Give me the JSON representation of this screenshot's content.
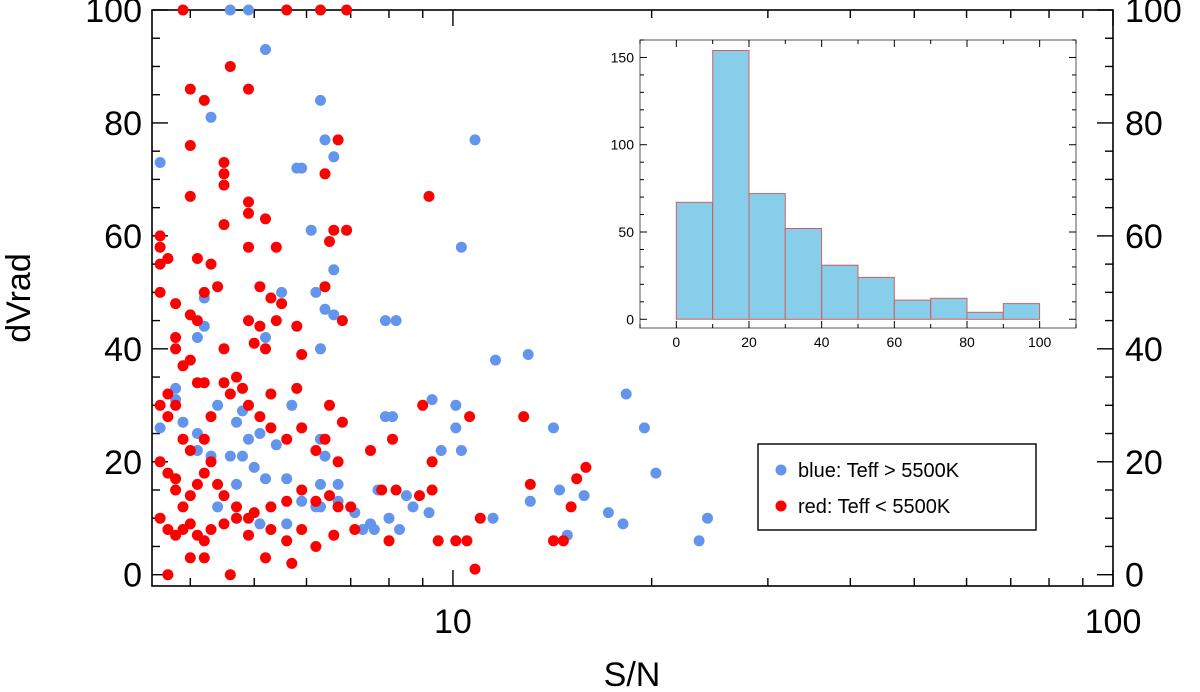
{
  "chart_data": [
    {
      "type": "scatter",
      "title": "",
      "xlabel": "S/N",
      "ylabel": "dVrad",
      "xscale": "log",
      "xlim": [
        3.5,
        100
      ],
      "ylim": [
        -2,
        100
      ],
      "x_tick_labels": [
        {
          "value": 10,
          "label": "10"
        },
        {
          "value": 100,
          "label": "100"
        }
      ],
      "y_tick_labels": [
        {
          "value": 0,
          "label": "0"
        },
        {
          "value": 20,
          "label": "20"
        },
        {
          "value": 40,
          "label": "40"
        },
        {
          "value": 60,
          "label": "60"
        },
        {
          "value": 80,
          "label": "80"
        },
        {
          "value": 100,
          "label": "100"
        }
      ],
      "legend": {
        "position": "bottom-right",
        "entries": [
          {
            "label": "blue: Teff > 5500K",
            "color": "#6495ED"
          },
          {
            "label": "red: Teff < 5500K",
            "color": "#FF0000"
          }
        ]
      },
      "series": [
        {
          "name": "blue: Teff > 5500K",
          "color": "#6495ED",
          "points": [
            [
              4.6,
              100
            ],
            [
              4.9,
              100
            ],
            [
              5.2,
              93
            ],
            [
              4.3,
              81
            ],
            [
              6.3,
              84
            ],
            [
              6.4,
              77
            ],
            [
              6.6,
              74
            ],
            [
              10.8,
              77
            ],
            [
              5.8,
              72
            ],
            [
              5.9,
              72
            ],
            [
              6.1,
              61
            ],
            [
              10.3,
              58
            ],
            [
              6.6,
              54
            ],
            [
              5.5,
              50
            ],
            [
              6.2,
              50
            ],
            [
              6.4,
              47
            ],
            [
              6.6,
              46
            ],
            [
              7.9,
              45
            ],
            [
              8.2,
              45
            ],
            [
              4.2,
              49
            ],
            [
              4.2,
              44
            ],
            [
              4.1,
              42
            ],
            [
              5.2,
              42
            ],
            [
              6.3,
              40
            ],
            [
              11.6,
              38
            ],
            [
              13.0,
              39
            ],
            [
              3.6,
              73
            ],
            [
              3.6,
              26
            ],
            [
              3.8,
              33
            ],
            [
              3.8,
              31
            ],
            [
              4.1,
              25
            ],
            [
              4.4,
              30
            ],
            [
              4.7,
              27
            ],
            [
              4.8,
              29
            ],
            [
              4.9,
              24
            ],
            [
              5.1,
              25
            ],
            [
              5.4,
              23
            ],
            [
              5.7,
              30
            ],
            [
              6.3,
              24
            ],
            [
              6.4,
              21
            ],
            [
              7.9,
              28
            ],
            [
              8.1,
              28
            ],
            [
              9.3,
              31
            ],
            [
              10.1,
              30
            ],
            [
              10.1,
              26
            ],
            [
              10.3,
              22
            ],
            [
              9.6,
              22
            ],
            [
              14.2,
              26
            ],
            [
              18.3,
              32
            ],
            [
              19.5,
              26
            ],
            [
              20.3,
              18
            ],
            [
              3.9,
              27
            ],
            [
              4.1,
              22
            ],
            [
              4.3,
              21
            ],
            [
              4.6,
              21
            ],
            [
              4.8,
              21
            ],
            [
              5.0,
              19
            ],
            [
              5.2,
              17
            ],
            [
              5.6,
              17
            ],
            [
              5.9,
              13
            ],
            [
              6.2,
              12
            ],
            [
              6.3,
              12
            ],
            [
              6.7,
              16
            ],
            [
              6.7,
              13
            ],
            [
              7.1,
              11
            ],
            [
              7.3,
              8
            ],
            [
              7.5,
              9
            ],
            [
              7.6,
              8
            ],
            [
              8.0,
              10
            ],
            [
              8.3,
              8
            ],
            [
              8.7,
              12
            ],
            [
              9.2,
              11
            ],
            [
              11.5,
              10
            ],
            [
              13.1,
              13
            ],
            [
              14.5,
              15
            ],
            [
              14.9,
              7
            ],
            [
              15.8,
              14
            ],
            [
              17.2,
              11
            ],
            [
              18.1,
              9
            ],
            [
              23.6,
              6
            ],
            [
              24.3,
              10
            ],
            [
              4.4,
              12
            ],
            [
              4.7,
              16
            ],
            [
              5.1,
              9
            ],
            [
              5.6,
              9
            ],
            [
              6.3,
              16
            ],
            [
              7.7,
              15
            ],
            [
              8.5,
              14
            ]
          ]
        },
        {
          "name": "red: Teff < 5500K",
          "color": "#FF0000",
          "points": [
            [
              3.9,
              100
            ],
            [
              5.6,
              100
            ],
            [
              6.3,
              100
            ],
            [
              6.9,
              100
            ],
            [
              4.6,
              90
            ],
            [
              4.0,
              86
            ],
            [
              4.2,
              84
            ],
            [
              4.9,
              86
            ],
            [
              6.7,
              77
            ],
            [
              4.0,
              76
            ],
            [
              4.5,
              73
            ],
            [
              4.5,
              71
            ],
            [
              4.5,
              69
            ],
            [
              6.4,
              71
            ],
            [
              4.9,
              66
            ],
            [
              4.9,
              64
            ],
            [
              4.0,
              67
            ],
            [
              4.5,
              62
            ],
            [
              5.2,
              63
            ],
            [
              9.2,
              67
            ],
            [
              3.6,
              60
            ],
            [
              3.6,
              58
            ],
            [
              3.6,
              55
            ],
            [
              3.7,
              56
            ],
            [
              4.1,
              56
            ],
            [
              4.3,
              55
            ],
            [
              4.9,
              58
            ],
            [
              5.4,
              58
            ],
            [
              6.9,
              61
            ],
            [
              6.6,
              61
            ],
            [
              6.5,
              59
            ],
            [
              3.6,
              50
            ],
            [
              3.8,
              48
            ],
            [
              4.2,
              50
            ],
            [
              4.4,
              51
            ],
            [
              5.1,
              51
            ],
            [
              5.3,
              49
            ],
            [
              5.5,
              48
            ],
            [
              6.4,
              51
            ],
            [
              4.0,
              46
            ],
            [
              4.1,
              45
            ],
            [
              4.9,
              45
            ],
            [
              5.1,
              44
            ],
            [
              5.4,
              45
            ],
            [
              5.8,
              44
            ],
            [
              6.8,
              45
            ],
            [
              3.8,
              42
            ],
            [
              3.8,
              40
            ],
            [
              3.9,
              37
            ],
            [
              4.0,
              38
            ],
            [
              4.5,
              40
            ],
            [
              5.0,
              41
            ],
            [
              5.2,
              40
            ],
            [
              5.9,
              39
            ],
            [
              3.7,
              32
            ],
            [
              3.8,
              30
            ],
            [
              4.1,
              34
            ],
            [
              4.2,
              34
            ],
            [
              4.5,
              34
            ],
            [
              4.7,
              35
            ],
            [
              4.8,
              33
            ],
            [
              5.3,
              32
            ],
            [
              5.8,
              33
            ],
            [
              6.5,
              30
            ],
            [
              6.8,
              27
            ],
            [
              9.0,
              30
            ],
            [
              10.6,
              28
            ],
            [
              12.8,
              28
            ],
            [
              3.6,
              30
            ],
            [
              3.7,
              28
            ],
            [
              3.9,
              24
            ],
            [
              4.0,
              22
            ],
            [
              4.2,
              24
            ],
            [
              4.3,
              28
            ],
            [
              4.6,
              32
            ],
            [
              4.9,
              30
            ],
            [
              5.1,
              28
            ],
            [
              5.3,
              26
            ],
            [
              5.6,
              24
            ],
            [
              5.9,
              26
            ],
            [
              6.2,
              22
            ],
            [
              6.4,
              24
            ],
            [
              6.7,
              20
            ],
            [
              7.5,
              22
            ],
            [
              8.1,
              24
            ],
            [
              9.3,
              20
            ],
            [
              13.1,
              16
            ],
            [
              15.4,
              17
            ],
            [
              15.9,
              19
            ],
            [
              3.6,
              20
            ],
            [
              3.7,
              18
            ],
            [
              3.8,
              17
            ],
            [
              3.8,
              15
            ],
            [
              3.9,
              12
            ],
            [
              4.0,
              14
            ],
            [
              4.1,
              16
            ],
            [
              4.2,
              18
            ],
            [
              4.3,
              20
            ],
            [
              4.4,
              16
            ],
            [
              4.5,
              14
            ],
            [
              4.7,
              12
            ],
            [
              4.9,
              10
            ],
            [
              5.0,
              11
            ],
            [
              5.3,
              12
            ],
            [
              5.6,
              13
            ],
            [
              5.9,
              15
            ],
            [
              6.2,
              13
            ],
            [
              6.5,
              14
            ],
            [
              6.7,
              12
            ],
            [
              7.0,
              12
            ],
            [
              7.8,
              15
            ],
            [
              8.2,
              15
            ],
            [
              8.9,
              14
            ],
            [
              9.3,
              15
            ],
            [
              11.0,
              10
            ],
            [
              15.1,
              12
            ],
            [
              3.6,
              10
            ],
            [
              3.7,
              8
            ],
            [
              3.8,
              7
            ],
            [
              3.9,
              8
            ],
            [
              4.0,
              9
            ],
            [
              4.1,
              7
            ],
            [
              4.2,
              6
            ],
            [
              4.3,
              8
            ],
            [
              4.5,
              9
            ],
            [
              4.7,
              10
            ],
            [
              4.9,
              7
            ],
            [
              5.3,
              8
            ],
            [
              5.6,
              6
            ],
            [
              5.9,
              8
            ],
            [
              6.2,
              5
            ],
            [
              6.6,
              7
            ],
            [
              7.1,
              8
            ],
            [
              8.0,
              6
            ],
            [
              9.5,
              6
            ],
            [
              10.1,
              6
            ],
            [
              10.5,
              6
            ],
            [
              14.2,
              6
            ],
            [
              14.7,
              6
            ],
            [
              4.2,
              3
            ],
            [
              4.6,
              0
            ],
            [
              5.2,
              3
            ],
            [
              5.7,
              2
            ],
            [
              3.7,
              0
            ],
            [
              10.8,
              1
            ],
            [
              4.0,
              3
            ]
          ]
        }
      ]
    },
    {
      "type": "bar",
      "title": "",
      "xlabel": "",
      "ylabel": "",
      "xlim": [
        -10,
        110
      ],
      "ylim": [
        -5,
        160
      ],
      "bin_edges": [
        0,
        10,
        20,
        30,
        40,
        50,
        60,
        70,
        80,
        90,
        100
      ],
      "values": [
        67,
        154,
        72,
        52,
        31,
        24,
        11,
        12,
        4,
        9
      ],
      "x_ticks": [
        0,
        20,
        40,
        60,
        80,
        100
      ],
      "x_tick_labels": [
        "0",
        "20",
        "40",
        "60",
        "80",
        "100"
      ],
      "y_ticks": [
        0,
        50,
        100,
        150
      ],
      "y_tick_labels": [
        "0",
        "50",
        "100",
        "150"
      ],
      "bar_color": "#87CEEB",
      "edge_color": "#D06060"
    }
  ]
}
